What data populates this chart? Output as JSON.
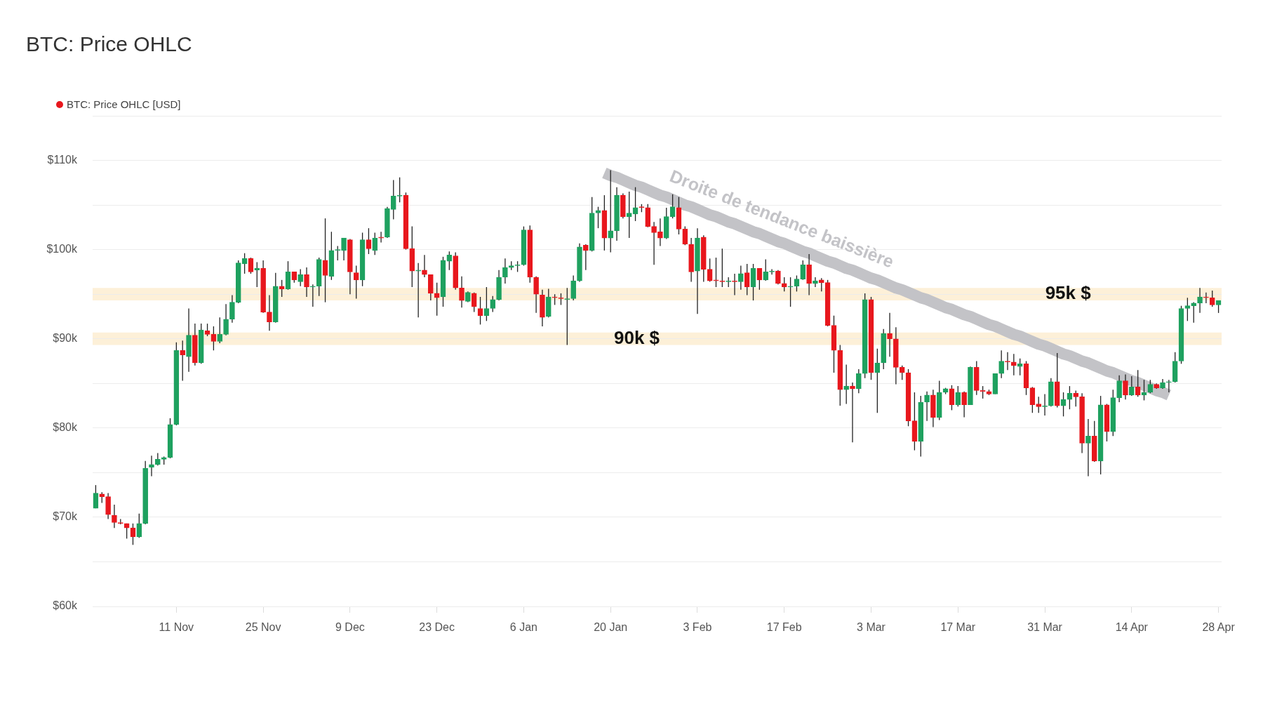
{
  "chart_data": {
    "type": "candlestick",
    "title": "BTC: Price OHLC",
    "categories": [
      null,
      null,
      null,
      null,
      null,
      null,
      null,
      null,
      null,
      null,
      null,
      null,
      null,
      "11 Nov",
      null,
      null,
      null,
      null,
      null,
      null,
      null,
      null,
      null,
      null,
      null,
      null,
      null,
      "25 Nov",
      null,
      null,
      null,
      null,
      null,
      null,
      null,
      null,
      null,
      null,
      null,
      null,
      null,
      "9 Dec",
      null,
      null,
      null,
      null,
      null,
      null,
      null,
      null,
      null,
      null,
      null,
      null,
      null,
      "23 Dec",
      null,
      null,
      null,
      null,
      null,
      null,
      null,
      null,
      null,
      null,
      null,
      null,
      null,
      "6 Jan",
      null,
      null,
      null,
      null,
      null,
      null,
      null,
      null,
      null,
      null,
      null,
      null,
      null,
      "20 Jan",
      null,
      null,
      null,
      null,
      null,
      null,
      null,
      null,
      null,
      null,
      null,
      null,
      null,
      "3 Feb",
      null,
      null,
      null,
      null,
      null,
      null,
      null,
      null,
      null,
      null,
      null,
      null,
      null,
      "17 Feb",
      null,
      null,
      null,
      null,
      null,
      null,
      null,
      null,
      null,
      null,
      null,
      null,
      null,
      "3 Mar",
      null,
      null,
      null,
      null,
      null,
      null,
      null,
      null,
      null,
      null,
      null,
      null,
      null,
      "17 Mar",
      null,
      null,
      null,
      null,
      null,
      null,
      null,
      null,
      null,
      null,
      null,
      null,
      null,
      "31 Mar",
      null,
      null,
      null,
      null,
      null,
      null,
      null,
      null,
      null,
      null,
      null,
      null,
      null,
      "14 Apr",
      null,
      null,
      null,
      null,
      null,
      null,
      null,
      null,
      null,
      null,
      null,
      null,
      null,
      "28 Apr"
    ],
    "series": [
      {
        "name": "BTC: Price OHLC [USD]",
        "color": "#e8171d",
        "colors": [
          "#1ea15f",
          "#e8171d",
          "#e8171d",
          "#e8171d",
          "#e8171d",
          "#e8171d",
          "#e8171d",
          "#1ea15f",
          "#1ea15f",
          "#1ea15f",
          "#1ea15f",
          "#1ea15f",
          "#1ea15f",
          "#1ea15f",
          "#e8171d",
          "#1ea15f",
          "#e8171d",
          "#1ea15f",
          "#e8171d",
          "#e8171d",
          "#1ea15f",
          "#1ea15f",
          "#1ea15f",
          "#1ea15f",
          "#1ea15f",
          "#e8171d",
          "#1ea15f",
          "#e8171d",
          "#e8171d",
          "#1ea15f",
          "#e8171d",
          "#1ea15f",
          "#e8171d",
          "#1ea15f",
          "#e8171d",
          "#1ea15f",
          "#1ea15f",
          "#e8171d",
          "#1ea15f",
          "#1ea15f",
          "#1ea15f",
          "#e8171d",
          "#e8171d",
          "#1ea15f",
          "#e8171d",
          "#1ea15f",
          "#e8171d",
          "#1ea15f",
          "#1ea15f",
          "#1ea15f",
          "#e8171d",
          "#e8171d",
          "#1ea15f",
          "#e8171d",
          "#e8171d",
          "#e8171d",
          "#1ea15f",
          "#1ea15f",
          "#e8171d",
          "#e8171d",
          "#1ea15f",
          "#e8171d",
          "#e8171d",
          "#1ea15f",
          "#1ea15f",
          "#1ea15f",
          "#1ea15f",
          "#1ea15f",
          "#1ea15f",
          "#1ea15f",
          "#e8171d",
          "#e8171d",
          "#e8171d",
          "#1ea15f",
          "#e8171d",
          "#e8171d",
          "#1ea15f",
          "#1ea15f",
          "#1ea15f",
          "#e8171d",
          "#1ea15f",
          "#1ea15f",
          "#e8171d",
          "#1ea15f",
          "#1ea15f",
          "#e8171d",
          "#1ea15f",
          "#1ea15f",
          "#e8171d",
          "#e8171d",
          "#e8171d",
          "#e8171d",
          "#1ea15f",
          "#1ea15f",
          "#e8171d",
          "#e8171d",
          "#e8171d",
          "#1ea15f",
          "#e8171d",
          "#e8171d",
          "#e8171d",
          "#e8171d",
          "#1ea15f",
          "#e8171d",
          "#1ea15f",
          "#e8171d",
          "#1ea15f",
          "#e8171d",
          "#1ea15f",
          "#1ea15f",
          "#e8171d",
          "#e8171d",
          "#1ea15f",
          "#1ea15f",
          "#1ea15f",
          "#e8171d",
          "#1ea15f",
          "#e8171d",
          "#e8171d",
          "#e8171d",
          "#e8171d",
          "#1ea15f",
          "#e8171d",
          "#1ea15f",
          "#1ea15f",
          "#e8171d",
          "#1ea15f",
          "#1ea15f",
          "#e8171d",
          "#e8171d",
          "#e8171d",
          "#e8171d",
          "#e8171d",
          "#1ea15f",
          "#1ea15f",
          "#e8171d",
          "#1ea15f",
          "#1ea15f",
          "#e8171d",
          "#1ea15f",
          "#e8171d",
          "#1ea15f",
          "#e8171d",
          "#e8171d",
          "#e8171d",
          "#1ea15f",
          "#1ea15f",
          "#e8171d",
          "#e8171d",
          "#1ea15f",
          "#e8171d",
          "#e8171d",
          "#e8171d",
          "#1ea15f",
          "#1ea15f",
          "#e8171d",
          "#1ea15f",
          "#1ea15f",
          "#e8171d",
          "#e8171d",
          "#1ea15f",
          "#e8171d",
          "#1ea15f",
          "#e8171d",
          "#1ea15f",
          "#1ea15f",
          "#e8171d",
          "#1ea15f",
          "#e8171d",
          "#1ea15f",
          "#1ea15f",
          "#e8171d",
          "#1ea15f",
          "#1ea15f",
          "#1ea15f",
          "#1ea15f",
          "#1ea15f",
          "#1ea15f",
          "#1ea15f",
          "#e8171d",
          "#e8171d",
          "#1ea15f"
        ],
        "ohlc": [
          [
            71000,
            73600,
            71000,
            72700
          ],
          [
            72600,
            72800,
            71600,
            72300
          ],
          [
            72300,
            72700,
            69800,
            70300
          ],
          [
            70200,
            71400,
            68800,
            69400
          ],
          [
            69400,
            69800,
            69200,
            69300
          ],
          [
            69300,
            69300,
            67600,
            68800
          ],
          [
            68800,
            69300,
            66900,
            67800
          ],
          [
            67800,
            70400,
            67700,
            69300
          ],
          [
            69300,
            76300,
            69200,
            75500
          ],
          [
            75600,
            76900,
            74600,
            75900
          ],
          [
            75900,
            77200,
            75800,
            76500
          ],
          [
            76500,
            76800,
            75900,
            76700
          ],
          [
            76700,
            81100,
            76600,
            80400
          ],
          [
            80400,
            89600,
            80300,
            88700
          ],
          [
            88700,
            89800,
            85300,
            88200
          ],
          [
            88000,
            93400,
            86300,
            90400
          ],
          [
            90400,
            91700,
            87000,
            87300
          ],
          [
            87300,
            91700,
            87200,
            91000
          ],
          [
            90900,
            91700,
            90300,
            90500
          ],
          [
            90500,
            91400,
            88700,
            89700
          ],
          [
            89700,
            92400,
            89500,
            90500
          ],
          [
            90500,
            93900,
            90400,
            92200
          ],
          [
            92200,
            94900,
            91800,
            94100
          ],
          [
            94100,
            98800,
            94000,
            98500
          ],
          [
            98400,
            99600,
            97300,
            99000
          ],
          [
            99000,
            99100,
            97300,
            97500
          ],
          [
            97700,
            98600,
            95800,
            97900
          ],
          [
            97900,
            98800,
            92900,
            93000
          ],
          [
            93000,
            94900,
            90900,
            91900
          ],
          [
            91900,
            97400,
            91800,
            95900
          ],
          [
            95900,
            96600,
            94700,
            95600
          ],
          [
            95600,
            98700,
            95500,
            97500
          ],
          [
            97500,
            97500,
            96300,
            96600
          ],
          [
            96400,
            97800,
            95900,
            97200
          ],
          [
            97200,
            98000,
            94700,
            95800
          ],
          [
            95800,
            96100,
            93600,
            95900
          ],
          [
            95900,
            99100,
            94800,
            98900
          ],
          [
            98800,
            103500,
            94100,
            97100
          ],
          [
            97000,
            102000,
            96600,
            99900
          ],
          [
            99900,
            100400,
            98800,
            100000
          ],
          [
            99900,
            101300,
            98800,
            101300
          ],
          [
            101100,
            101200,
            95000,
            97500
          ],
          [
            97400,
            98200,
            94500,
            96600
          ],
          [
            96600,
            101900,
            95900,
            101100
          ],
          [
            101100,
            102400,
            99500,
            100100
          ],
          [
            99900,
            101900,
            99400,
            101300
          ],
          [
            101400,
            102000,
            100800,
            101300
          ],
          [
            101400,
            104800,
            101300,
            104600
          ],
          [
            104500,
            107800,
            103400,
            106000
          ],
          [
            106000,
            108100,
            105300,
            106100
          ],
          [
            106100,
            106400,
            100000,
            100100
          ],
          [
            100100,
            102600,
            95800,
            97600
          ],
          [
            97600,
            98500,
            92400,
            97700
          ],
          [
            97700,
            99400,
            96900,
            97200
          ],
          [
            97200,
            97200,
            94300,
            95100
          ],
          [
            95100,
            96300,
            92600,
            94600
          ],
          [
            94700,
            99200,
            93600,
            98800
          ],
          [
            98700,
            99800,
            97700,
            99400
          ],
          [
            99300,
            99700,
            95500,
            95700
          ],
          [
            95700,
            97000,
            93500,
            94300
          ],
          [
            94200,
            95300,
            94100,
            95200
          ],
          [
            95100,
            95200,
            93000,
            93600
          ],
          [
            93400,
            94700,
            91600,
            92600
          ],
          [
            92600,
            95800,
            92000,
            93400
          ],
          [
            93400,
            94800,
            93000,
            94400
          ],
          [
            94400,
            97700,
            94300,
            96900
          ],
          [
            96900,
            99000,
            96200,
            98000
          ],
          [
            98000,
            98700,
            97700,
            98200
          ],
          [
            98200,
            98700,
            97500,
            98300
          ],
          [
            98300,
            102600,
            98200,
            102200
          ],
          [
            102200,
            102700,
            96300,
            96900
          ],
          [
            96900,
            97000,
            92900,
            95000
          ],
          [
            94900,
            95500,
            91400,
            92400
          ],
          [
            92500,
            95600,
            92400,
            94700
          ],
          [
            94700,
            95000,
            93800,
            94600
          ],
          [
            94600,
            95100,
            93800,
            94500
          ],
          [
            94400,
            95700,
            89300,
            94500
          ],
          [
            94500,
            97100,
            94300,
            96500
          ],
          [
            96500,
            100700,
            96400,
            100300
          ],
          [
            100500,
            100600,
            97700,
            99900
          ],
          [
            99900,
            105900,
            99800,
            104100
          ],
          [
            104100,
            104800,
            102400,
            104400
          ],
          [
            104400,
            106100,
            99900,
            101300
          ],
          [
            101300,
            108900,
            99700,
            102100
          ],
          [
            102100,
            107000,
            101000,
            106100
          ],
          [
            106100,
            106300,
            103500,
            103700
          ],
          [
            103700,
            106500,
            101300,
            104100
          ],
          [
            104000,
            107000,
            103200,
            104700
          ],
          [
            104800,
            105100,
            104200,
            104700
          ],
          [
            104700,
            105100,
            102500,
            102600
          ],
          [
            102600,
            103100,
            98300,
            101900
          ],
          [
            102000,
            103500,
            100400,
            101300
          ],
          [
            101300,
            104700,
            101200,
            103700
          ],
          [
            103700,
            106200,
            103500,
            104800
          ],
          [
            104700,
            105900,
            101700,
            102300
          ],
          [
            102300,
            102600,
            100500,
            100600
          ],
          [
            100600,
            101300,
            96400,
            97500
          ],
          [
            97600,
            102400,
            92800,
            101300
          ],
          [
            101400,
            101600,
            96400,
            97800
          ],
          [
            97800,
            99000,
            96400,
            96500
          ],
          [
            96600,
            99100,
            95800,
            96500
          ],
          [
            96500,
            100100,
            95800,
            96400
          ],
          [
            96400,
            96900,
            95800,
            96500
          ],
          [
            96500,
            97300,
            94900,
            96400
          ],
          [
            96400,
            98200,
            95500,
            97300
          ],
          [
            97400,
            98400,
            94900,
            95800
          ],
          [
            95800,
            98400,
            94300,
            97900
          ],
          [
            97900,
            97900,
            95500,
            96600
          ],
          [
            96600,
            98900,
            96500,
            97500
          ],
          [
            97500,
            97800,
            97200,
            97600
          ],
          [
            97600,
            97700,
            96100,
            96200
          ],
          [
            96200,
            96900,
            95300,
            95800
          ],
          [
            95800,
            96900,
            93600,
            95900
          ],
          [
            95900,
            97100,
            95300,
            96700
          ],
          [
            96700,
            98800,
            96600,
            98300
          ],
          [
            98300,
            99500,
            94900,
            96200
          ],
          [
            96200,
            96900,
            95800,
            96500
          ],
          [
            96600,
            96800,
            95300,
            96300
          ],
          [
            96300,
            96600,
            91400,
            91500
          ],
          [
            91500,
            92600,
            86200,
            88700
          ],
          [
            88700,
            89300,
            82500,
            84300
          ],
          [
            84300,
            87100,
            82700,
            84700
          ],
          [
            84700,
            85100,
            78400,
            84400
          ],
          [
            84400,
            86600,
            83900,
            86100
          ],
          [
            86100,
            95100,
            85600,
            94400
          ],
          [
            94400,
            94700,
            85400,
            86200
          ],
          [
            86200,
            88900,
            81700,
            87300
          ],
          [
            87300,
            91100,
            86600,
            90600
          ],
          [
            90600,
            92900,
            88000,
            90000
          ],
          [
            90000,
            91300,
            84900,
            86800
          ],
          [
            86800,
            87000,
            85400,
            86200
          ],
          [
            86200,
            86600,
            80200,
            80800
          ],
          [
            80800,
            84000,
            77500,
            78500
          ],
          [
            78500,
            83600,
            76800,
            82900
          ],
          [
            82900,
            84100,
            80800,
            83700
          ],
          [
            83700,
            84300,
            80100,
            81200
          ],
          [
            81200,
            85300,
            80900,
            84000
          ],
          [
            84000,
            84500,
            83800,
            84400
          ],
          [
            84400,
            84800,
            82000,
            82600
          ],
          [
            82600,
            84700,
            82400,
            84000
          ],
          [
            84000,
            84100,
            81200,
            82600
          ],
          [
            82600,
            86900,
            82600,
            86800
          ],
          [
            86800,
            87500,
            83700,
            84200
          ],
          [
            84200,
            84700,
            83300,
            84100
          ],
          [
            84100,
            84300,
            83700,
            83800
          ],
          [
            83800,
            86100,
            83800,
            86100
          ],
          [
            86100,
            88700,
            85600,
            87500
          ],
          [
            87500,
            88500,
            86500,
            87400
          ],
          [
            87400,
            88300,
            85900,
            87000
          ],
          [
            86900,
            87800,
            85900,
            87200
          ],
          [
            87200,
            87500,
            83700,
            84500
          ],
          [
            84500,
            84600,
            81700,
            82600
          ],
          [
            82700,
            83500,
            81700,
            82400
          ],
          [
            82400,
            83800,
            81400,
            82500
          ],
          [
            82500,
            85600,
            82400,
            85200
          ],
          [
            85200,
            88400,
            82300,
            82500
          ],
          [
            82500,
            84000,
            81300,
            83200
          ],
          [
            83200,
            84700,
            82100,
            83900
          ],
          [
            83900,
            84200,
            82400,
            83500
          ],
          [
            83500,
            83900,
            77200,
            78300
          ],
          [
            78300,
            81000,
            74600,
            79100
          ],
          [
            79100,
            80800,
            76200,
            76300
          ],
          [
            76300,
            83600,
            74800,
            82600
          ],
          [
            82600,
            82700,
            78500,
            79600
          ],
          [
            79600,
            84300,
            79100,
            83400
          ],
          [
            83400,
            85900,
            82900,
            85300
          ],
          [
            85300,
            86000,
            83200,
            83700
          ],
          [
            83700,
            85800,
            83600,
            84600
          ],
          [
            84600,
            86500,
            83500,
            83700
          ],
          [
            83700,
            85400,
            83100,
            84000
          ],
          [
            84000,
            85400,
            83900,
            84900
          ],
          [
            84900,
            85000,
            84400,
            84500
          ],
          [
            84500,
            85500,
            84400,
            85100
          ],
          [
            85100,
            85400,
            84000,
            85200
          ],
          [
            85200,
            88500,
            85100,
            87500
          ],
          [
            87500,
            93700,
            87200,
            93400
          ],
          [
            93400,
            94600,
            92000,
            93700
          ],
          [
            93700,
            94100,
            91800,
            94000
          ],
          [
            94000,
            95700,
            92900,
            94700
          ],
          [
            94700,
            95200,
            94000,
            94600
          ],
          [
            94600,
            95400,
            93600,
            93800
          ],
          [
            93800,
            94300,
            92900,
            94300
          ]
        ]
      },
      {
        "type": "line",
        "name": "Droite de tendance baissière",
        "color": "#c3c3c7",
        "values": [
          null,
          null,
          null,
          null,
          null,
          null,
          null,
          null,
          null,
          null,
          null,
          null,
          null,
          null,
          null,
          null,
          null,
          null,
          null,
          null,
          null,
          null,
          null,
          null,
          null,
          null,
          null,
          null,
          null,
          null,
          null,
          null,
          null,
          null,
          null,
          null,
          null,
          null,
          null,
          null,
          null,
          null,
          null,
          null,
          null,
          null,
          null,
          null,
          null,
          null,
          null,
          null,
          null,
          null,
          null,
          null,
          null,
          null,
          null,
          null,
          null,
          null,
          null,
          null,
          null,
          null,
          null,
          null,
          null,
          null,
          null,
          null,
          null,
          null,
          null,
          null,
          null,
          null,
          null,
          null,
          null,
          null,
          108600,
          108300,
          108100,
          107800,
          107500,
          107200,
          107000,
          106700,
          106400,
          106100,
          105900,
          105600,
          105300,
          105000,
          104800,
          104500,
          104200,
          103900,
          103700,
          103400,
          103100,
          102900,
          102600,
          102300,
          102000,
          101800,
          101500,
          101200,
          100900,
          100700,
          100400,
          100100,
          99800,
          99600,
          99300,
          99000,
          98700,
          98500,
          98200,
          97900,
          97700,
          97400,
          97100,
          96800,
          96600,
          96300,
          96000,
          95700,
          95500,
          95200,
          94900,
          94600,
          94400,
          94100,
          93800,
          93500,
          93300,
          93000,
          92700,
          92500,
          92200,
          91900,
          91600,
          91400,
          91100,
          90800,
          90500,
          90300,
          90000,
          89700,
          89400,
          89200,
          88900,
          88600,
          88300,
          88100,
          87800,
          87500,
          87300,
          87000,
          86700,
          86400,
          86200,
          85900,
          85600,
          85300,
          85100,
          84800,
          84500,
          84200,
          84000,
          83700,
          null,
          null,
          null,
          null,
          null,
          null,
          null,
          null
        ]
      }
    ],
    "ylim": [
      60000,
      115000
    ],
    "yticks": [
      {
        "value": 60000,
        "label": "$60k"
      },
      {
        "value": 65000,
        "label": null
      },
      {
        "value": 70000,
        "label": "$70k"
      },
      {
        "value": 75000,
        "label": null
      },
      {
        "value": 80000,
        "label": "$80k"
      },
      {
        "value": 85000,
        "label": null
      },
      {
        "value": 90000,
        "label": "$90k"
      },
      {
        "value": 95000,
        "label": null
      },
      {
        "value": 100000,
        "label": "$100k"
      },
      {
        "value": 105000,
        "label": null
      },
      {
        "value": 110000,
        "label": "$110k"
      },
      {
        "value": 115000,
        "label": null
      }
    ],
    "bands": [
      {
        "axis": "y",
        "from": 94300,
        "to": 95700,
        "label": "95k $",
        "color": "#fdf0d8"
      },
      {
        "axis": "y",
        "from": 89300,
        "to": 90700,
        "label": "90k $",
        "color": "#fdf0d8"
      }
    ],
    "grid": "y",
    "legend": "top left"
  }
}
